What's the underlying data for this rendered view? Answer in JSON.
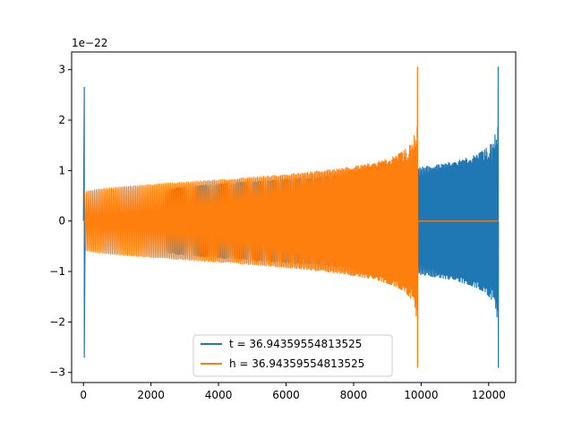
{
  "chart_data": {
    "type": "line",
    "title": "",
    "xlabel": "",
    "ylabel": "",
    "offset_text": "1e−22",
    "xlim": [
      -350,
      12800
    ],
    "ylim": [
      -3.2,
      3.35
    ],
    "xticks": [
      0,
      2000,
      4000,
      6000,
      8000,
      10000,
      12000
    ],
    "xtick_labels": [
      "0",
      "2000",
      "4000",
      "6000",
      "8000",
      "10000",
      "12000"
    ],
    "yticks": [
      -3,
      -2,
      -1,
      0,
      1,
      2,
      3
    ],
    "ytick_labels": [
      "−3",
      "−2",
      "−1",
      "0",
      "1",
      "2",
      "3"
    ],
    "grid": false,
    "legend_position": "lower center",
    "series": [
      {
        "name": "t = 36.94359554813525",
        "color": "#1f77b4",
        "segments": [
          {
            "x_start": 0,
            "x_end": 50,
            "amplitude_peak": 2.65,
            "amplitude_trough": -2.7,
            "kind": "burst"
          },
          {
            "x_start": 50,
            "x_end": 2420,
            "amplitude": 0.0,
            "kind": "flat"
          },
          {
            "x_start": 2420,
            "x_end": 12290,
            "amplitude_start": 0.6,
            "amplitude_end": 3.05,
            "amplitude_trough_end": -2.9,
            "kind": "chirp"
          }
        ]
      },
      {
        "name": "h = 36.94359554813525",
        "color": "#ff7f0e",
        "segments": [
          {
            "x_start": 0,
            "x_end": 40,
            "amplitude": 0.0,
            "kind": "flat"
          },
          {
            "x_start": 40,
            "x_end": 9900,
            "amplitude_start": 0.57,
            "amplitude_end": 3.05,
            "amplitude_trough_end": -2.9,
            "kind": "chirp"
          },
          {
            "x_start": 9900,
            "x_end": 12290,
            "amplitude": 0.0,
            "kind": "flat"
          }
        ]
      }
    ]
  }
}
